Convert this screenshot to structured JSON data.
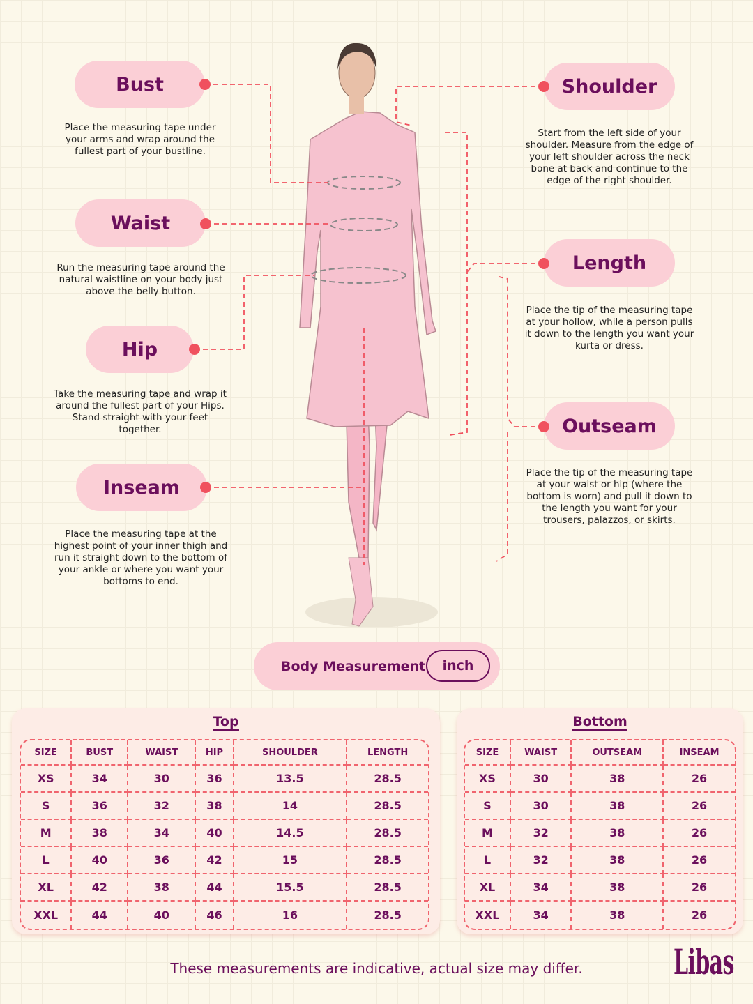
{
  "measurements": {
    "bust": {
      "label": "Bust",
      "text": "Place the measuring tape under your arms and wrap around the fullest part of your bustline."
    },
    "waist": {
      "label": "Waist",
      "text": "Run the measuring tape around the natural waistline on your body just above the belly button."
    },
    "hip": {
      "label": "Hip",
      "text": "Take the measuring tape and wrap it around the fullest part of your Hips. Stand straight with your feet together."
    },
    "inseam": {
      "label": "Inseam",
      "text": "Place the measuring tape at the highest point of your inner thigh and run it straight down to the bottom of your ankle or where you want your bottoms to end."
    },
    "shoulder": {
      "label": "Shoulder",
      "text": "Start from the left side of your shoulder. Measure from the edge of your left shoulder across the neck bone at back and continue to the edge of the right shoulder."
    },
    "length": {
      "label": "Length",
      "text": "Place the tip of the measuring tape at your hollow, while a person pulls it down to the length you want your kurta or dress."
    },
    "outseam": {
      "label": "Outseam",
      "text": "Place the tip of the measuring tape at your waist or hip (where the bottom is worn) and pull it down to the length you want for your trousers, palazzos, or skirts."
    }
  },
  "unit_toggle": {
    "label": "Body Measurement",
    "unit": "inch"
  },
  "top_table": {
    "title": "Top",
    "headers": [
      "SIZE",
      "BUST",
      "WAIST",
      "HIP",
      "SHOULDER",
      "LENGTH"
    ],
    "rows": [
      [
        "XS",
        "34",
        "30",
        "36",
        "13.5",
        "28.5"
      ],
      [
        "S",
        "36",
        "32",
        "38",
        "14",
        "28.5"
      ],
      [
        "M",
        "38",
        "34",
        "40",
        "14.5",
        "28.5"
      ],
      [
        "L",
        "40",
        "36",
        "42",
        "15",
        "28.5"
      ],
      [
        "XL",
        "42",
        "38",
        "44",
        "15.5",
        "28.5"
      ],
      [
        "XXL",
        "44",
        "40",
        "46",
        "16",
        "28.5"
      ]
    ]
  },
  "bottom_table": {
    "title": "Bottom",
    "headers": [
      "SIZE",
      "WAIST",
      "OUTSEAM",
      "INSEAM"
    ],
    "rows": [
      [
        "XS",
        "30",
        "38",
        "26"
      ],
      [
        "S",
        "30",
        "38",
        "26"
      ],
      [
        "M",
        "32",
        "38",
        "26"
      ],
      [
        "L",
        "32",
        "38",
        "26"
      ],
      [
        "XL",
        "34",
        "38",
        "26"
      ],
      [
        "XXL",
        "34",
        "38",
        "26"
      ]
    ]
  },
  "footer": "These measurements are indicative, actual size may differ.",
  "brand": "Libas",
  "colors": {
    "accent": "#6b0f5c",
    "pill": "#fbcfd6",
    "dash": "#f0515e",
    "background": "#fcf8ea"
  }
}
